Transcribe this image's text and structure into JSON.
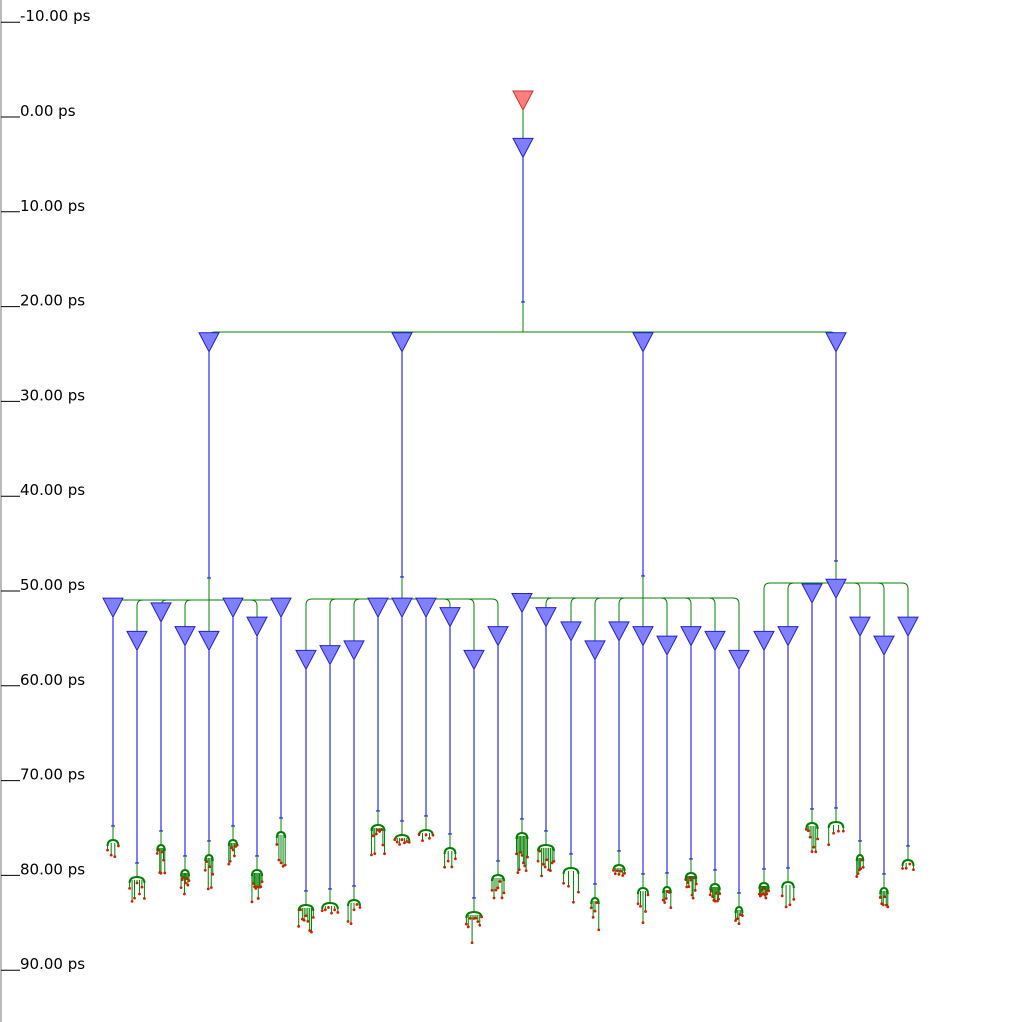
{
  "time_axis": {
    "unit": "ps",
    "ticks": [
      "-10.00 ps",
      "0.00 ps",
      "10.00 ps",
      "20.00 ps",
      "30.00 ps",
      "40.00 ps",
      "50.00 ps",
      "60.00 ps",
      "70.00 ps",
      "80.00 ps",
      "90.00 ps"
    ]
  },
  "colors": {
    "root_fill": "#ff7f7f",
    "root_stroke": "#cc3333",
    "node_fill": "#7f7fff",
    "node_stroke": "#2222cc",
    "edge_green": "#008000",
    "edge_blue": "#0000ee",
    "leaf_red": "#cc2200",
    "axis": "#000000"
  },
  "tree": {
    "root": {
      "t": 0.0
    },
    "node": {
      "t": 5.0
    },
    "level1": [
      {
        "t": 25.5,
        "children": [
          53.5,
          57.0,
          54.0,
          56.5,
          57.0,
          53.5,
          55.5,
          53.5
        ]
      },
      {
        "t": 25.5,
        "children": [
          59.0,
          58.5,
          58.0,
          53.5,
          53.5,
          53.5,
          54.5,
          59.0,
          56.5
        ]
      },
      {
        "t": 25.5,
        "children": [
          53.0,
          54.5,
          56.0,
          58.0,
          56.0,
          56.5,
          57.5,
          56.5,
          57.0,
          59.0
        ]
      },
      {
        "t": 25.5,
        "children": [
          57.0,
          56.5,
          52.0,
          51.5,
          55.5,
          57.5,
          55.5
        ]
      }
    ]
  }
}
